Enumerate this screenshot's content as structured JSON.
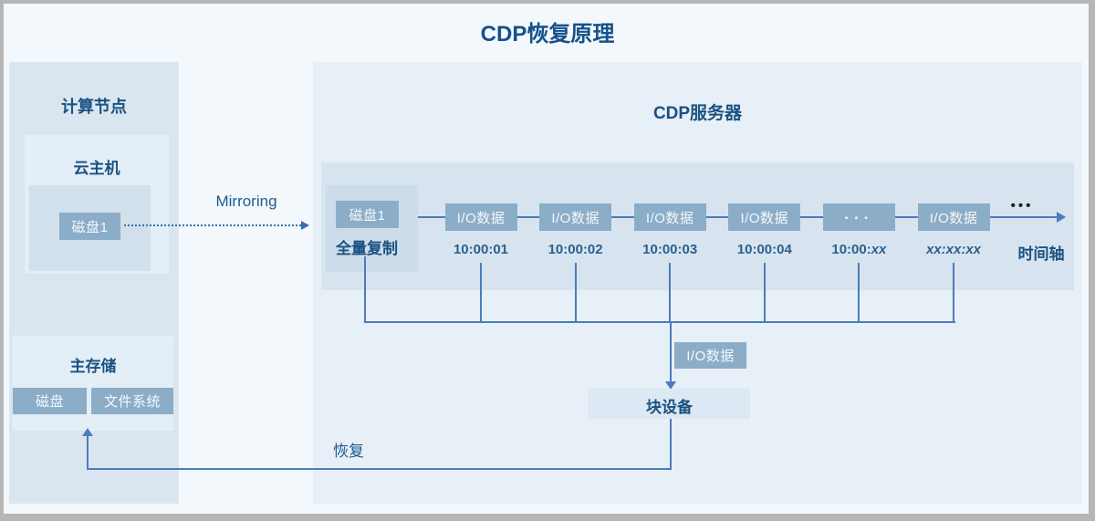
{
  "title": "CDP恢复原理",
  "colors": {
    "page_bg": "#f3f8fc",
    "frame_gray": "#b6b6b6",
    "left_panel_bg": "#d9e6f0",
    "cdp_panel_bg": "#e7eff7",
    "subpanel_bg": "#e4eef7",
    "timeline_strip_bg": "#d7e4ef",
    "box_blue": "#8cadc8",
    "heading_blue": "#1a5182",
    "line_blue": "#4b7cbc"
  },
  "compute_node": {
    "title": "计算节点",
    "cloud_host": {
      "title": "云主机",
      "disk_label": "磁盘1"
    },
    "main_storage": {
      "title": "主存储",
      "disk_label": "磁盘",
      "fs_label": "文件系统"
    }
  },
  "mirroring_label": "Mirroring",
  "recovery_label": "恢复",
  "cdp_server": {
    "title": "CDP服务器",
    "full_copy": {
      "disk_label": "磁盘1",
      "caption": "全量复制"
    },
    "timeline": {
      "columns": [
        {
          "box": "I/O数据",
          "box_is_dots": false,
          "time": "10:00:01",
          "time_italic": ""
        },
        {
          "box": "I/O数据",
          "box_is_dots": false,
          "time": "10:00:02",
          "time_italic": ""
        },
        {
          "box": "I/O数据",
          "box_is_dots": false,
          "time": "10:00:03",
          "time_italic": ""
        },
        {
          "box": "I/O数据",
          "box_is_dots": false,
          "time": "10:00:04",
          "time_italic": ""
        },
        {
          "box": "...",
          "box_is_dots": true,
          "time": "10:00:",
          "time_italic": "xx"
        },
        {
          "box": "I/O数据",
          "box_is_dots": false,
          "time": "",
          "time_italic": "xx:xx:xx"
        }
      ],
      "ellipsis": "•••",
      "axis_label": "时间轴"
    },
    "io_data_label": "I/O数据",
    "block_device_label": "块设备"
  }
}
